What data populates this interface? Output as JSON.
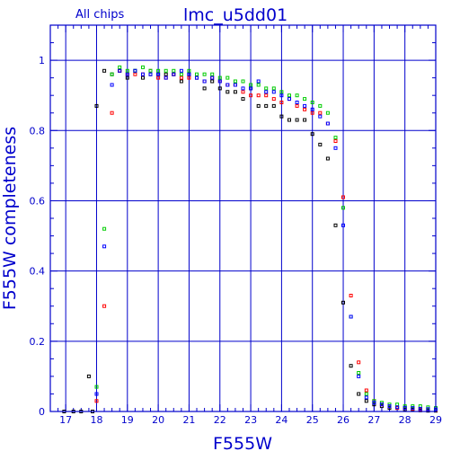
{
  "chart_data": {
    "type": "scatter",
    "title": "lmc_u5dd01",
    "subtitle": "All chips",
    "xlabel": "F555W",
    "ylabel": "F555W completeness",
    "xlim": [
      16.5,
      29
    ],
    "ylim": [
      0,
      1.1
    ],
    "xticks": [
      17,
      18,
      19,
      20,
      21,
      22,
      23,
      24,
      25,
      26,
      27,
      28,
      29
    ],
    "yticks": [
      0,
      0.2,
      0.4,
      0.6,
      0.8,
      1
    ],
    "ytick_labels": [
      "0",
      "0.2",
      "0.4",
      "0.6",
      "0.8",
      "1"
    ],
    "grid": true,
    "series": [
      {
        "color": "#000000",
        "points": [
          [
            16.95,
            0
          ],
          [
            17.25,
            0
          ],
          [
            17.5,
            0
          ],
          [
            17.75,
            0.1
          ],
          [
            17.87,
            0
          ],
          [
            18.0,
            0.87
          ],
          [
            18.25,
            0.97
          ],
          [
            18.5,
            0.96
          ],
          [
            18.75,
            0.97
          ],
          [
            19.0,
            0.95
          ],
          [
            19.25,
            0.97
          ],
          [
            19.5,
            0.95
          ],
          [
            19.75,
            0.96
          ],
          [
            20.0,
            0.96
          ],
          [
            20.25,
            0.96
          ],
          [
            20.5,
            0.96
          ],
          [
            20.75,
            0.94
          ],
          [
            21.0,
            0.96
          ],
          [
            21.25,
            0.95
          ],
          [
            21.5,
            0.92
          ],
          [
            21.75,
            0.94
          ],
          [
            22.0,
            0.92
          ],
          [
            22.25,
            0.91
          ],
          [
            22.5,
            0.91
          ],
          [
            22.75,
            0.89
          ],
          [
            23.0,
            0.92
          ],
          [
            23.25,
            0.87
          ],
          [
            23.5,
            0.87
          ],
          [
            23.75,
            0.87
          ],
          [
            24.0,
            0.84
          ],
          [
            24.25,
            0.83
          ],
          [
            24.5,
            0.83
          ],
          [
            24.75,
            0.83
          ],
          [
            25.0,
            0.79
          ],
          [
            25.25,
            0.76
          ],
          [
            25.5,
            0.72
          ],
          [
            25.75,
            0.53
          ],
          [
            26.0,
            0.31
          ],
          [
            26.25,
            0.13
          ],
          [
            26.5,
            0.05
          ],
          [
            26.75,
            0.03
          ],
          [
            27.0,
            0.02
          ],
          [
            27.25,
            0.015
          ],
          [
            27.5,
            0.01
          ],
          [
            27.75,
            0.01
          ],
          [
            28.0,
            0.005
          ],
          [
            28.25,
            0.005
          ],
          [
            28.5,
            0.003
          ],
          [
            28.75,
            0.002
          ],
          [
            29.0,
            0.002
          ]
        ]
      },
      {
        "color": "#ff0000",
        "points": [
          [
            18.0,
            0.03
          ],
          [
            18.25,
            0.3
          ],
          [
            18.5,
            0.85
          ],
          [
            18.75,
            0.97
          ],
          [
            19.0,
            0.96
          ],
          [
            19.25,
            0.96
          ],
          [
            19.5,
            0.96
          ],
          [
            19.75,
            0.97
          ],
          [
            20.0,
            0.95
          ],
          [
            20.25,
            0.95
          ],
          [
            20.5,
            0.96
          ],
          [
            20.75,
            0.95
          ],
          [
            21.0,
            0.95
          ],
          [
            21.25,
            0.95
          ],
          [
            21.5,
            0.94
          ],
          [
            21.75,
            0.95
          ],
          [
            22.0,
            0.94
          ],
          [
            22.25,
            0.93
          ],
          [
            22.5,
            0.93
          ],
          [
            22.75,
            0.91
          ],
          [
            23.0,
            0.9
          ],
          [
            23.25,
            0.9
          ],
          [
            23.5,
            0.9
          ],
          [
            23.75,
            0.89
          ],
          [
            24.0,
            0.88
          ],
          [
            24.25,
            0.89
          ],
          [
            24.5,
            0.87
          ],
          [
            24.75,
            0.86
          ],
          [
            25.0,
            0.85
          ],
          [
            25.25,
            0.85
          ],
          [
            25.5,
            0.82
          ],
          [
            25.75,
            0.77
          ],
          [
            26.0,
            0.61
          ],
          [
            26.25,
            0.33
          ],
          [
            26.5,
            0.14
          ],
          [
            26.75,
            0.06
          ],
          [
            27.0,
            0.03
          ],
          [
            27.25,
            0.02
          ],
          [
            27.5,
            0.015
          ],
          [
            27.75,
            0.01
          ],
          [
            28.0,
            0.01
          ],
          [
            28.25,
            0.008
          ],
          [
            28.5,
            0.006
          ],
          [
            28.75,
            0.005
          ],
          [
            29.0,
            0.004
          ]
        ]
      },
      {
        "color": "#00cc00",
        "points": [
          [
            18.0,
            0.07
          ],
          [
            18.25,
            0.52
          ],
          [
            18.5,
            0.96
          ],
          [
            18.75,
            0.98
          ],
          [
            19.0,
            0.97
          ],
          [
            19.25,
            0.97
          ],
          [
            19.5,
            0.98
          ],
          [
            19.75,
            0.97
          ],
          [
            20.0,
            0.97
          ],
          [
            20.25,
            0.97
          ],
          [
            20.5,
            0.97
          ],
          [
            20.75,
            0.96
          ],
          [
            21.0,
            0.97
          ],
          [
            21.25,
            0.96
          ],
          [
            21.5,
            0.96
          ],
          [
            21.75,
            0.96
          ],
          [
            22.0,
            0.95
          ],
          [
            22.25,
            0.95
          ],
          [
            22.5,
            0.94
          ],
          [
            22.75,
            0.94
          ],
          [
            23.0,
            0.93
          ],
          [
            23.25,
            0.93
          ],
          [
            23.5,
            0.92
          ],
          [
            23.75,
            0.92
          ],
          [
            24.0,
            0.91
          ],
          [
            24.25,
            0.9
          ],
          [
            24.5,
            0.9
          ],
          [
            24.75,
            0.89
          ],
          [
            25.0,
            0.88
          ],
          [
            25.25,
            0.87
          ],
          [
            25.5,
            0.85
          ],
          [
            25.75,
            0.78
          ],
          [
            26.0,
            0.58
          ],
          [
            26.25,
            0.27
          ],
          [
            26.5,
            0.11
          ],
          [
            26.75,
            0.05
          ],
          [
            27.0,
            0.03
          ],
          [
            27.25,
            0.025
          ],
          [
            27.5,
            0.02
          ],
          [
            27.75,
            0.02
          ],
          [
            28.0,
            0.015
          ],
          [
            28.25,
            0.015
          ],
          [
            28.5,
            0.015
          ],
          [
            28.75,
            0.012
          ],
          [
            29.0,
            0.01
          ]
        ]
      },
      {
        "color": "#0000ff",
        "points": [
          [
            18.0,
            0.05
          ],
          [
            18.25,
            0.47
          ],
          [
            18.5,
            0.93
          ],
          [
            18.75,
            0.97
          ],
          [
            19.0,
            0.96
          ],
          [
            19.25,
            0.97
          ],
          [
            19.5,
            0.96
          ],
          [
            19.75,
            0.96
          ],
          [
            20.0,
            0.96
          ],
          [
            20.25,
            0.95
          ],
          [
            20.5,
            0.96
          ],
          [
            20.75,
            0.97
          ],
          [
            21.0,
            0.96
          ],
          [
            21.25,
            0.95
          ],
          [
            21.5,
            0.94
          ],
          [
            21.75,
            0.95
          ],
          [
            22.0,
            0.94
          ],
          [
            22.25,
            0.93
          ],
          [
            22.5,
            0.93
          ],
          [
            22.75,
            0.92
          ],
          [
            23.0,
            0.92
          ],
          [
            23.25,
            0.94
          ],
          [
            23.5,
            0.91
          ],
          [
            23.75,
            0.91
          ],
          [
            24.0,
            0.9
          ],
          [
            24.25,
            0.89
          ],
          [
            24.5,
            0.88
          ],
          [
            24.75,
            0.87
          ],
          [
            25.0,
            0.86
          ],
          [
            25.25,
            0.84
          ],
          [
            25.5,
            0.82
          ],
          [
            25.75,
            0.75
          ],
          [
            26.0,
            0.53
          ],
          [
            26.25,
            0.27
          ],
          [
            26.5,
            0.1
          ],
          [
            26.75,
            0.04
          ],
          [
            27.0,
            0.025
          ],
          [
            27.25,
            0.02
          ],
          [
            27.5,
            0.015
          ],
          [
            27.75,
            0.012
          ],
          [
            28.0,
            0.01
          ],
          [
            28.25,
            0.01
          ],
          [
            28.5,
            0.008
          ],
          [
            28.75,
            0.007
          ],
          [
            29.0,
            0.006
          ]
        ]
      }
    ]
  }
}
